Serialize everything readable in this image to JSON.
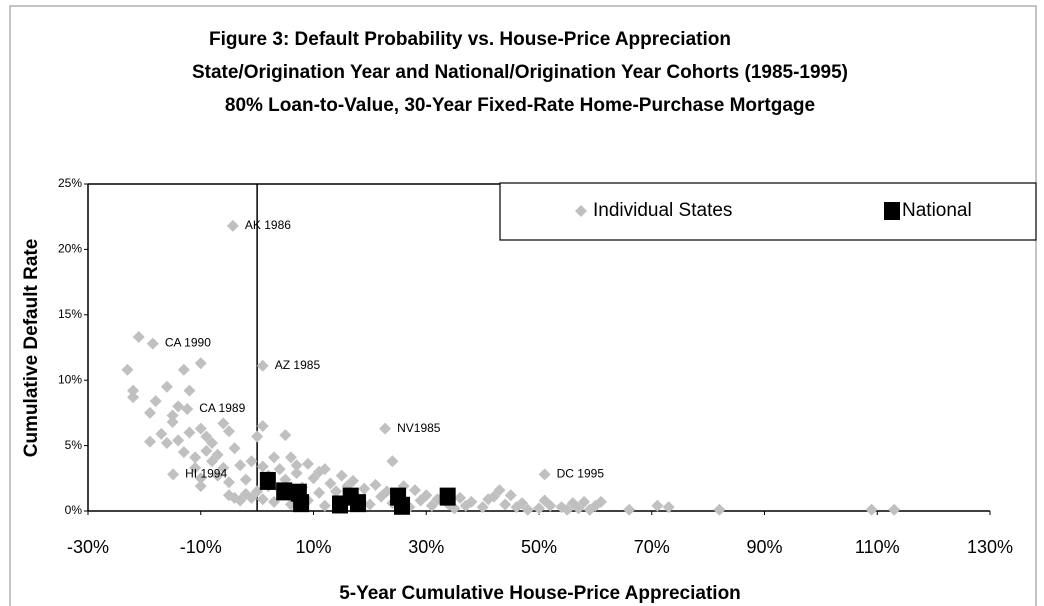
{
  "chart_data": {
    "type": "scatter",
    "title": "Figure 3: Default Probability vs. House-Price Appreciation",
    "subtitle": [
      "State/Origination Year and National/Origination Year Cohorts (1985-1995)",
      "80% Loan-to-Value, 30-Year Fixed-Rate Home-Purchase Mortgage"
    ],
    "x_label": "5-Year Cumulative House-Price Appreciation",
    "y_label": "Cumulative Default Rate",
    "xlim": [
      -30,
      130
    ],
    "ylim": [
      0,
      25
    ],
    "xticks": [
      {
        "value": -30,
        "label": "-30%"
      },
      {
        "value": -10,
        "label": "-10%"
      },
      {
        "value": 10,
        "label": "10%"
      },
      {
        "value": 30,
        "label": "30%"
      },
      {
        "value": 50,
        "label": "50%"
      },
      {
        "value": 70,
        "label": "70%"
      },
      {
        "value": 90,
        "label": "90%"
      },
      {
        "value": 110,
        "label": "110%"
      },
      {
        "value": 130,
        "label": "130%"
      }
    ],
    "yticks": [
      {
        "value": 0,
        "label": "0%"
      },
      {
        "value": 5,
        "label": "5%"
      },
      {
        "value": 10,
        "label": "10%"
      },
      {
        "value": 15,
        "label": "15%"
      },
      {
        "value": 20,
        "label": "20%"
      },
      {
        "value": 25,
        "label": "25%"
      }
    ],
    "legend": "upper right",
    "series": [
      {
        "name": "Individual States",
        "color": "#c0c0c0",
        "marker": "diamond",
        "x": [
          -4.3,
          -18.5,
          1.0,
          -12.4,
          22.7,
          -14.9,
          51.0,
          -23,
          -22,
          -22,
          -21,
          -19,
          -19,
          -18,
          -17,
          -16,
          -16,
          -15,
          -15,
          -14,
          -14,
          -13,
          -13,
          -12,
          -12,
          -11,
          -11,
          -10,
          -10,
          -10,
          -10,
          -9,
          -9,
          -8,
          -8,
          -7,
          -7,
          -6,
          -6,
          -5,
          -5,
          -5,
          -4,
          -4,
          -3,
          -3,
          -2,
          -2,
          -1,
          -1,
          0,
          0,
          1,
          1,
          1,
          2,
          2,
          3,
          3,
          4,
          4,
          5,
          5,
          6,
          6,
          7,
          7,
          8,
          9,
          9,
          10,
          11,
          11,
          12,
          12,
          13,
          14,
          15,
          15,
          16,
          17,
          18,
          19,
          20,
          21,
          22,
          23,
          24,
          24,
          26,
          27,
          28,
          29,
          30,
          31,
          32,
          34,
          35,
          36,
          37,
          38,
          40,
          41,
          42,
          43,
          44,
          45,
          46,
          47,
          48,
          50,
          51,
          52,
          54,
          55,
          56,
          57,
          58,
          59,
          60,
          61,
          66,
          71,
          73,
          82,
          109,
          113
        ],
        "values": [
          21.8,
          12.8,
          11.1,
          7.8,
          6.3,
          2.8,
          2.8,
          10.8,
          9.2,
          8.7,
          13.3,
          7.5,
          5.3,
          8.4,
          5.9,
          9.5,
          5.2,
          7.3,
          6.8,
          8.0,
          5.4,
          10.8,
          4.5,
          9.2,
          6.0,
          4.1,
          3.3,
          11.3,
          6.3,
          2.5,
          1.9,
          5.7,
          4.6,
          5.2,
          3.8,
          4.3,
          2.7,
          6.7,
          3.3,
          6.1,
          2.2,
          1.2,
          4.8,
          1.0,
          3.5,
          0.8,
          2.4,
          1.3,
          3.8,
          1.0,
          5.7,
          1.5,
          6.5,
          3.4,
          0.9,
          2.7,
          1.9,
          4.1,
          0.7,
          3.2,
          1.7,
          5.8,
          2.4,
          4.1,
          0.5,
          3.5,
          2.9,
          1.8,
          3.6,
          0.8,
          2.5,
          1.4,
          3.0,
          0.4,
          3.2,
          2.1,
          1.5,
          2.7,
          0.3,
          1.9,
          2.3,
          0.8,
          1.7,
          0.5,
          2.0,
          1.1,
          1.5,
          3.8,
          0.6,
          1.9,
          0.3,
          1.6,
          0.8,
          1.2,
          0.4,
          0.9,
          0.5,
          0.2,
          1.0,
          0.4,
          0.7,
          0.3,
          0.9,
          1.1,
          1.6,
          0.5,
          1.2,
          0.3,
          0.6,
          0.1,
          0.2,
          0.8,
          0.4,
          0.3,
          0.1,
          0.6,
          0.2,
          0.7,
          0.1,
          0.4,
          0.7,
          0.1,
          0.4,
          0.3,
          0.1,
          0.1,
          0.1
        ]
      },
      {
        "name": "National",
        "color": "#000000",
        "marker": "square",
        "x": [
          1.9,
          4.8,
          7.4,
          7.8,
          14.7,
          16.6,
          17.9,
          25.0,
          25.7,
          33.8
        ],
        "values": [
          2.3,
          1.5,
          1.4,
          0.6,
          0.5,
          1.1,
          0.6,
          1.1,
          0.4,
          1.1
        ]
      }
    ],
    "annotations": [
      {
        "text": "AK 1986",
        "x": -4.3,
        "y": 21.8
      },
      {
        "text": "CA 1990",
        "x": -18.5,
        "y": 12.8
      },
      {
        "text": "AZ 1985",
        "x": 1.0,
        "y": 11.1
      },
      {
        "text": "CA 1989",
        "x": -12.4,
        "y": 7.8
      },
      {
        "text": "NV1985",
        "x": 22.7,
        "y": 6.3
      },
      {
        "text": "HI 1994",
        "x": -14.9,
        "y": 2.8
      },
      {
        "text": "DC 1995",
        "x": 51.0,
        "y": 2.8
      }
    ]
  }
}
